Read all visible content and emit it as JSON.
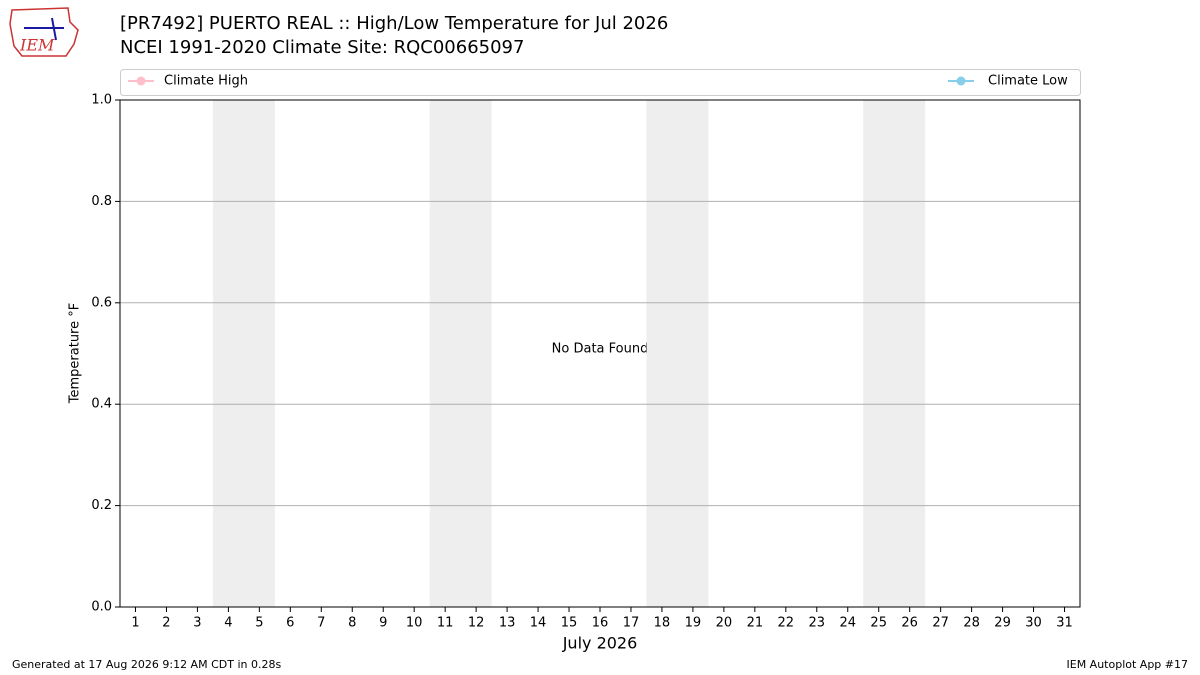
{
  "logo": "IEM",
  "chart_data": {
    "type": "line",
    "title": "[PR7492] PUERTO REAL :: High/Low Temperature for Jul 2026",
    "subtitle": "NCEI 1991-2020 Climate Site: RQC00665097",
    "ylabel": "Temperature °F",
    "xlabel": "July 2026",
    "annotation": "No Data Found",
    "series": [
      {
        "name": "Climate High",
        "color": "#ffc0cb",
        "values": []
      },
      {
        "name": "Climate Low",
        "color": "#87ceeb",
        "values": []
      }
    ],
    "xlim": [
      0.5,
      31.5
    ],
    "xticks": [
      1,
      2,
      3,
      4,
      5,
      6,
      7,
      8,
      9,
      10,
      11,
      12,
      13,
      14,
      15,
      16,
      17,
      18,
      19,
      20,
      21,
      22,
      23,
      24,
      25,
      26,
      27,
      28,
      29,
      30,
      31
    ],
    "ylim": [
      0,
      1
    ],
    "yticks": [
      {
        "value": 0,
        "label": "0.0"
      },
      {
        "value": 0.2,
        "label": "0.2"
      },
      {
        "value": 0.4,
        "label": "0.4"
      },
      {
        "value": 0.6,
        "label": "0.6"
      },
      {
        "value": 0.8,
        "label": "0.8"
      },
      {
        "value": 1,
        "label": "1.0"
      }
    ],
    "shaded_spans": [
      [
        3.5,
        5.5
      ],
      [
        10.5,
        12.5
      ],
      [
        17.5,
        19.5
      ],
      [
        24.5,
        26.5
      ]
    ],
    "grid": true
  },
  "footer": {
    "left": "Generated at 17 Aug 2026 9:12 AM CDT in 0.28s",
    "right": "IEM Autoplot App #17"
  }
}
